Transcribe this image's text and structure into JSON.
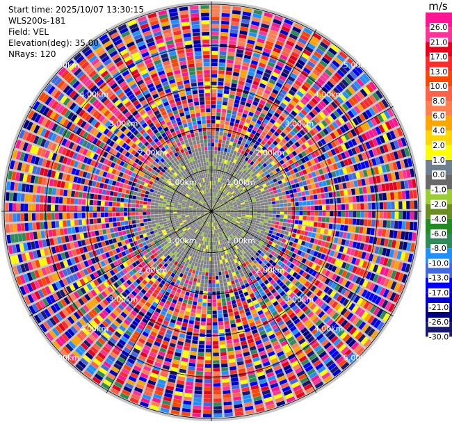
{
  "header": {
    "start_time": "Start time: 2025/10/07 13:30:15",
    "instrument": "WLS200s-181",
    "field": "Field: VEL",
    "elevation": "Elevation(deg): 35.00",
    "nrays": "NRays: 120"
  },
  "range_labels": [
    "1.00km",
    "2.00km",
    "3.00km",
    "4.00km",
    "5.00km"
  ],
  "colorbar": {
    "unit": "m/s",
    "ticks": [
      "26.0",
      "21.0",
      "17.0",
      "13.0",
      "10.0",
      "8.0",
      "6.0",
      "4.0",
      "2.0",
      "1.0",
      "0.0",
      "-1.0",
      "-2.0",
      "-4.0",
      "-6.0",
      "-8.0",
      "-10.0",
      "-13.0",
      "-17.0",
      "-21.0",
      "-26.0",
      "-30.0"
    ],
    "colors": [
      "#ff1493",
      "#ff3399",
      "#e8001c",
      "#ff2a2a",
      "#ff4500",
      "#ff6347",
      "#ff7f50",
      "#ffa500",
      "#ffd700",
      "#ffff00",
      "#708090",
      "#696969",
      "#9acd32",
      "#6b8e23",
      "#228b22",
      "#2e8b57",
      "#1e90ff",
      "#4169e1",
      "#0000ff",
      "#0000cd",
      "#000080",
      "#191970"
    ]
  }
}
